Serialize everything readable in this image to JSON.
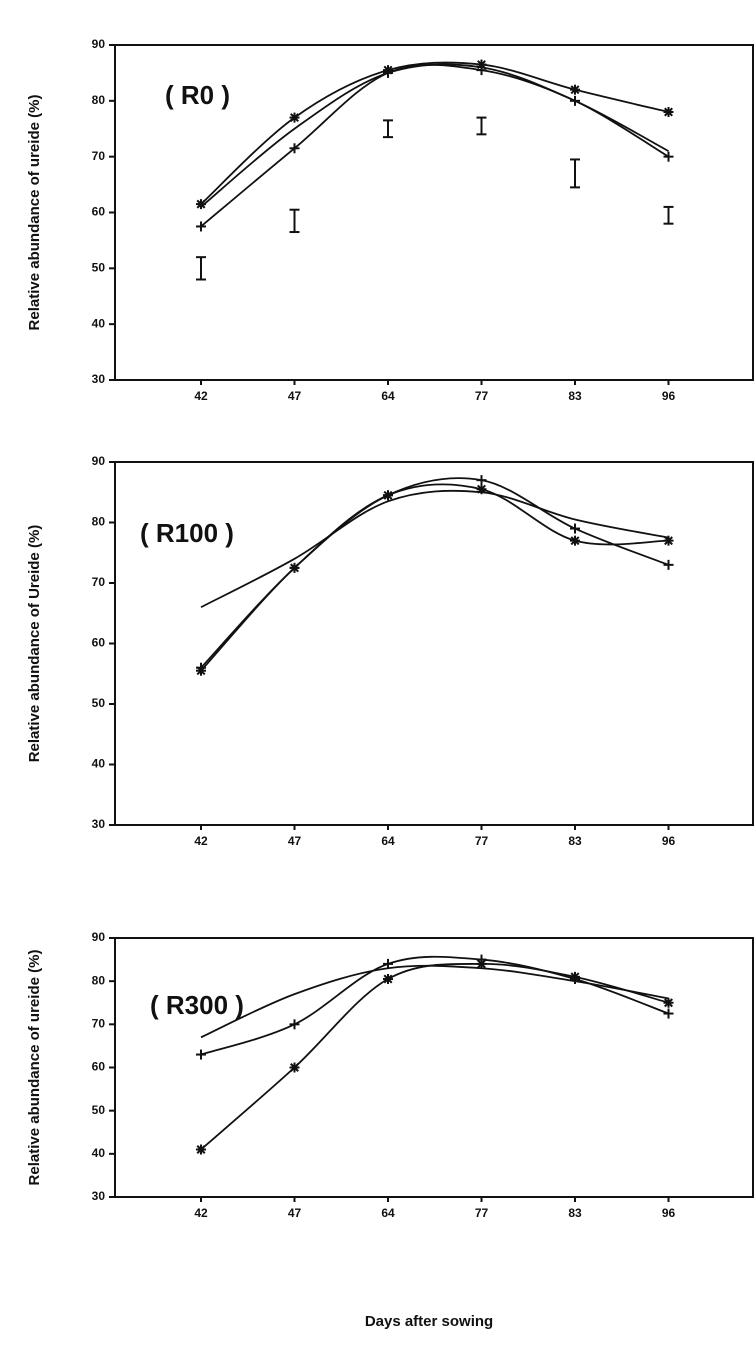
{
  "chart_data": [
    {
      "type": "line",
      "title": "( R0 )",
      "ylabel": "Relative abundance of ureide (%)",
      "categories": [
        "42",
        "47",
        "64",
        "77",
        "83",
        "96"
      ],
      "ylim": [
        30,
        90
      ],
      "yticks": [
        30,
        40,
        50,
        60,
        70,
        80,
        90
      ],
      "series": [
        {
          "marker": "asterisk",
          "color": "#111111",
          "values": [
            61.5,
            77,
            85.5,
            86.5,
            82,
            78
          ]
        },
        {
          "marker": "plus",
          "color": "#111111",
          "values": [
            57.5,
            71.5,
            85,
            85.5,
            80,
            70
          ]
        },
        {
          "marker": "none",
          "color": "#111111",
          "values": [
            61,
            75,
            85,
            86,
            80,
            71
          ]
        }
      ],
      "error_bars": {
        "values": [
          50,
          58.5,
          75,
          75.5,
          67,
          59.5
        ],
        "errors": [
          2,
          2,
          1.5,
          1.5,
          2.5,
          1.5
        ]
      }
    },
    {
      "type": "line",
      "title": "( R100 )",
      "ylabel": "Relative abundance of Ureide (%)",
      "categories": [
        "42",
        "47",
        "64",
        "77",
        "83",
        "96"
      ],
      "ylim": [
        30,
        90
      ],
      "yticks": [
        30,
        40,
        50,
        60,
        70,
        80,
        90
      ],
      "series": [
        {
          "marker": "asterisk",
          "color": "#111111",
          "values": [
            55.5,
            72.5,
            84.5,
            85.5,
            77,
            77
          ]
        },
        {
          "marker": "plus",
          "color": "#111111",
          "values": [
            56,
            72.5,
            84.5,
            87,
            79,
            73
          ]
        },
        {
          "marker": "none",
          "color": "#111111",
          "values": [
            66,
            74,
            83.5,
            85,
            80.5,
            77.5
          ]
        }
      ]
    },
    {
      "type": "line",
      "title": "( R300 )",
      "ylabel": "Relative abundance of ureide (%)",
      "xlabel": "Days after sowing",
      "categories": [
        "42",
        "47",
        "64",
        "77",
        "83",
        "96"
      ],
      "ylim": [
        30,
        90
      ],
      "yticks": [
        30,
        40,
        50,
        60,
        70,
        80,
        90
      ],
      "series": [
        {
          "marker": "asterisk",
          "color": "#111111",
          "values": [
            41,
            60,
            80.5,
            84,
            81,
            75
          ]
        },
        {
          "marker": "plus",
          "color": "#111111",
          "values": [
            63,
            70,
            84,
            85,
            80.5,
            72.5
          ]
        },
        {
          "marker": "none",
          "color": "#111111",
          "values": [
            67,
            77,
            83,
            83,
            80,
            76
          ]
        }
      ]
    }
  ]
}
